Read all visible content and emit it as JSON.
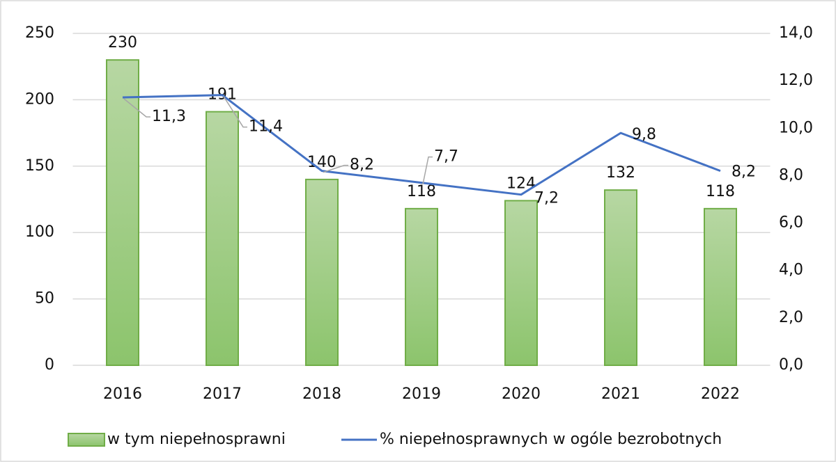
{
  "chart_data": {
    "type": "bar_line",
    "categories": [
      "2016",
      "2017",
      "2018",
      "2019",
      "2020",
      "2021",
      "2022"
    ],
    "series": [
      {
        "name": "w tym niepełnosprawni",
        "type": "bar",
        "color": "#70ad47",
        "values": [
          230,
          191,
          140,
          118,
          124,
          132,
          118
        ]
      },
      {
        "name": "% niepełnosprawnych w ogóle bezrobotnych",
        "type": "line",
        "axis": "y2",
        "color": "#4472c4",
        "values": [
          11.3,
          11.4,
          8.2,
          7.7,
          7.2,
          9.8,
          8.2
        ],
        "value_labels": [
          "11,3",
          "11,4",
          "8,2",
          "7,7",
          "7,2",
          "9,8",
          "8,2"
        ]
      }
    ],
    "ylim": [
      0,
      250
    ],
    "yticks": [
      0,
      50,
      100,
      150,
      200,
      250
    ],
    "y2lim": [
      0,
      14
    ],
    "y2ticks": [
      {
        "value": 0,
        "label": "0,0"
      },
      {
        "value": 2,
        "label": "2,0"
      },
      {
        "value": 4,
        "label": "4,0"
      },
      {
        "value": 6,
        "label": "6,0"
      },
      {
        "value": 8,
        "label": "8,0"
      },
      {
        "value": 10,
        "label": "10,0"
      },
      {
        "value": 12,
        "label": "12,0"
      },
      {
        "value": 14,
        "label": "14,0"
      }
    ],
    "grid": true,
    "legend": "bottom"
  }
}
